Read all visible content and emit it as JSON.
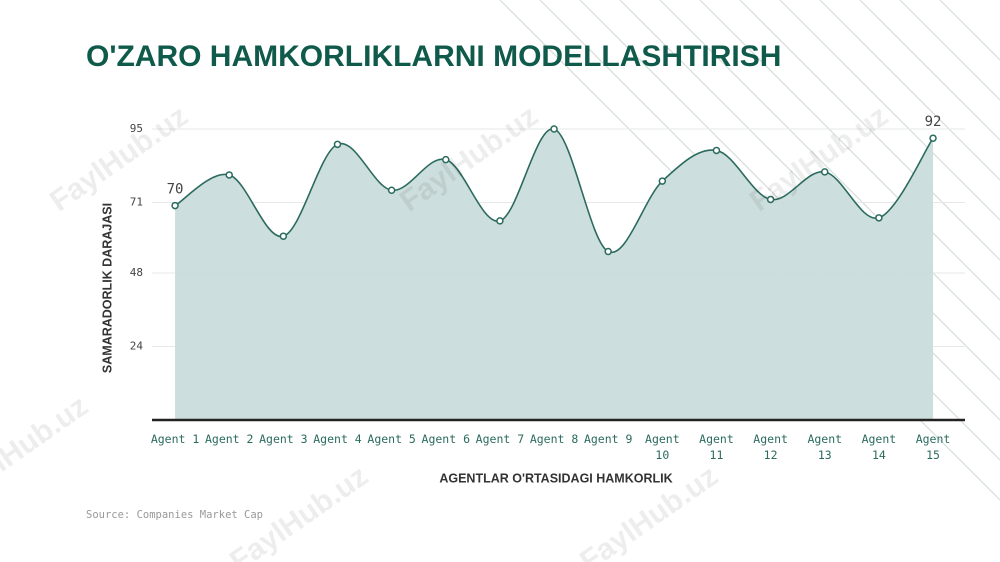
{
  "chart_data": {
    "type": "line",
    "title": "O'ZARO HAMKORLIKLARNI MODELLASHTIRISH",
    "x_label": "AGENTLAR O'RTASIDAGI HAMKORLIK",
    "y_label": "SAMARADORLIK DARAJASI",
    "source": "Source: Companies Market Cap",
    "watermark": "FaylHub.uz",
    "categories": [
      "Agent 1",
      "Agent 2",
      "Agent 3",
      "Agent 4",
      "Agent 5",
      "Agent 6",
      "Agent 7",
      "Agent 8",
      "Agent 9",
      "Agent 10",
      "Agent 11",
      "Agent 12",
      "Agent 13",
      "Agent 14",
      "Agent 15"
    ],
    "series": [
      {
        "color": "#2b6b5e",
        "fill": "#c9dcdb",
        "values": [
          70,
          80,
          60,
          90,
          75,
          85,
          65,
          95,
          55,
          78,
          88,
          72,
          81,
          66,
          92
        ]
      }
    ],
    "ylim": [
      0,
      95
    ],
    "yticks": [
      24,
      48,
      71,
      95
    ],
    "grid": true
  }
}
